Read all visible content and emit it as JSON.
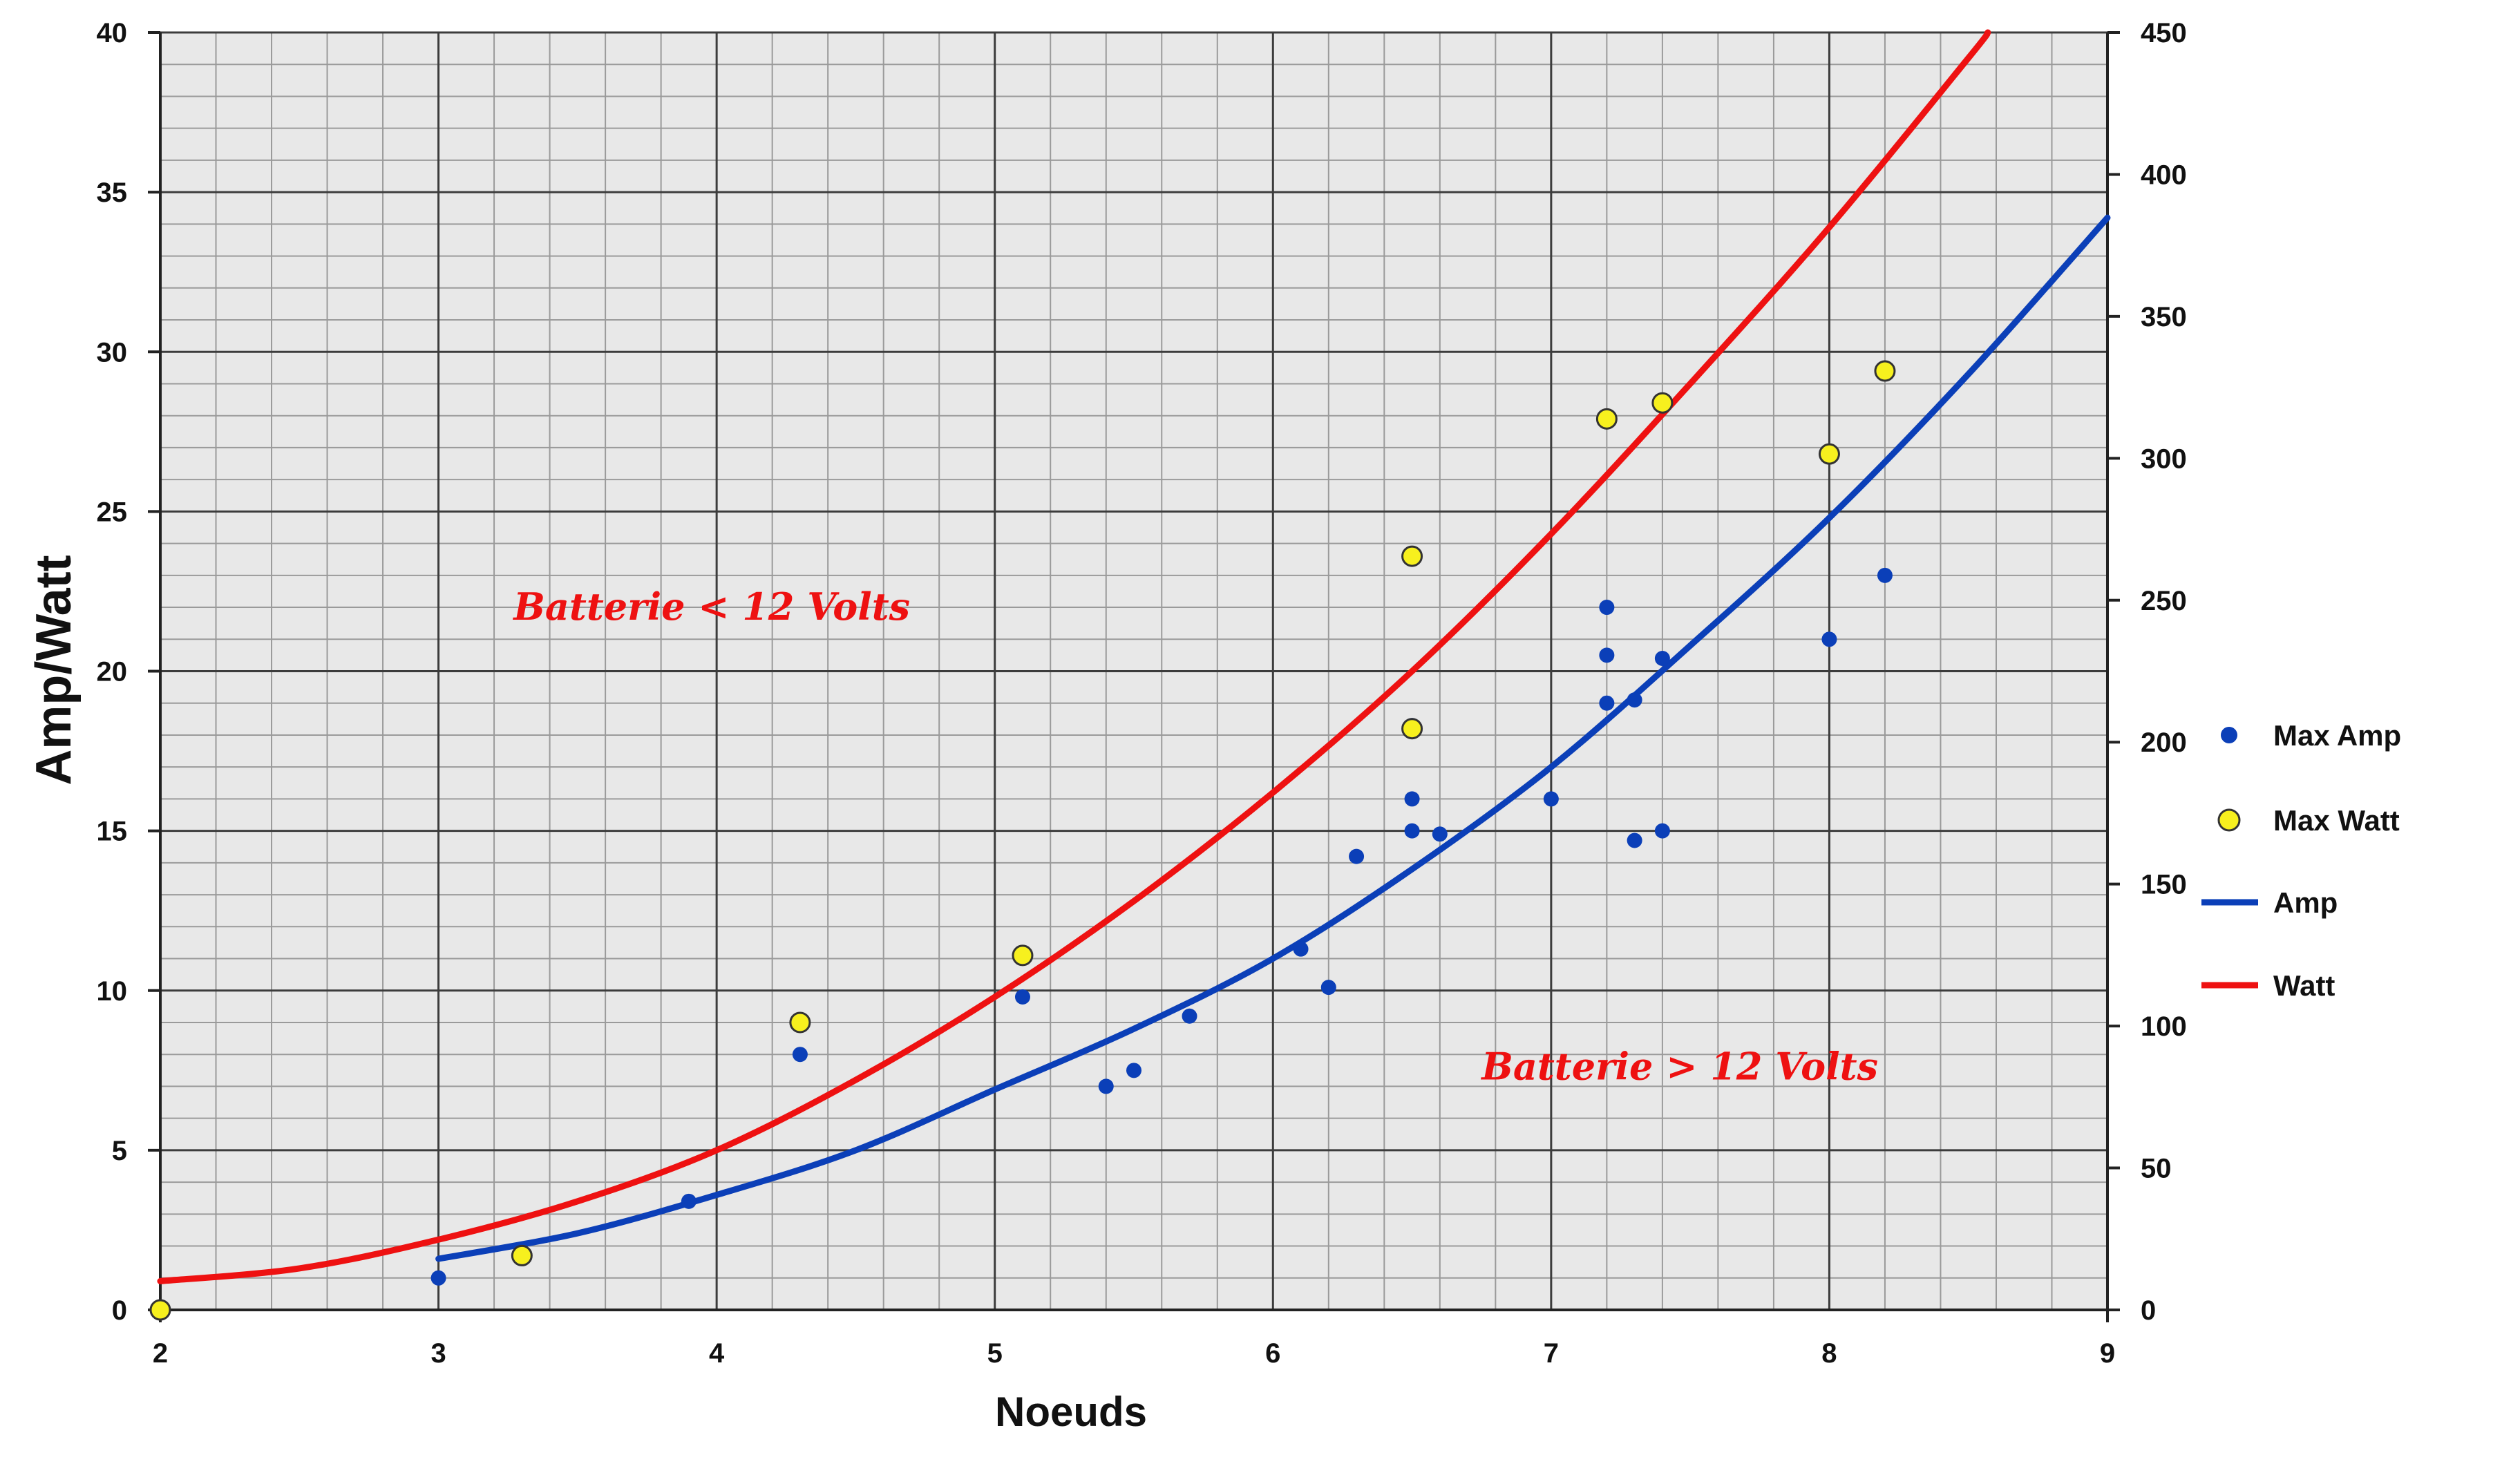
{
  "chart_data": {
    "type": "scatter",
    "xlabel": "Noeuds",
    "ylabel": "Amp/Watt",
    "xlim": [
      2,
      9
    ],
    "ylim": [
      0,
      40
    ],
    "y2lim": [
      0,
      450
    ],
    "x_ticks": [
      "2",
      "3",
      "4",
      "5",
      "6",
      "7",
      "8",
      "9"
    ],
    "y_ticks": [
      "0",
      "5",
      "10",
      "15",
      "20",
      "25",
      "30",
      "35",
      "40"
    ],
    "y2_ticks": [
      "0",
      "50",
      "100",
      "150",
      "200",
      "250",
      "300",
      "350",
      "400",
      "450"
    ],
    "grid": true,
    "background": "#e8e8e8",
    "legend_position": "right",
    "series": [
      {
        "name": "Max Amp",
        "kind": "scatter",
        "axis": "left",
        "color": "#0b3fb8",
        "points": [
          [
            3,
            1.0
          ],
          [
            3.9,
            3.4
          ],
          [
            4.3,
            8.0
          ],
          [
            5.1,
            9.8
          ],
          [
            5.4,
            7.0
          ],
          [
            5.5,
            7.5
          ],
          [
            5.7,
            9.2
          ],
          [
            6.1,
            11.3
          ],
          [
            6.2,
            10.1
          ],
          [
            6.3,
            14.2
          ],
          [
            6.5,
            16.0
          ],
          [
            6.5,
            15.0
          ],
          [
            6.5,
            18.3
          ],
          [
            6.6,
            14.9
          ],
          [
            7.0,
            16.0
          ],
          [
            7.2,
            22.0
          ],
          [
            7.2,
            20.5
          ],
          [
            7.2,
            19.0
          ],
          [
            7.3,
            19.1
          ],
          [
            7.3,
            14.7
          ],
          [
            7.4,
            20.4
          ],
          [
            7.4,
            15.0
          ],
          [
            8.0,
            21.0
          ],
          [
            8.2,
            23.0
          ]
        ]
      },
      {
        "name": "Max Watt",
        "kind": "scatter",
        "axis": "left",
        "color": "#f7f01e",
        "points": [
          [
            2,
            0
          ],
          [
            3.3,
            1.7
          ],
          [
            4.3,
            9.0
          ],
          [
            5.1,
            11.1
          ],
          [
            6.5,
            23.6
          ],
          [
            6.5,
            18.2
          ],
          [
            7.2,
            27.9
          ],
          [
            7.4,
            28.4
          ],
          [
            8.0,
            26.8
          ],
          [
            8.2,
            29.4
          ]
        ]
      },
      {
        "name": "Amp",
        "kind": "line",
        "axis": "left",
        "color": "#0b3fb8",
        "x": [
          3,
          3.5,
          4,
          4.5,
          5,
          5.5,
          6,
          6.5,
          7,
          7.5,
          8,
          8.5,
          9
        ],
        "values": [
          1.6,
          2.4,
          3.6,
          5.0,
          6.9,
          8.8,
          11.0,
          13.8,
          17.0,
          20.8,
          24.8,
          29.3,
          34.2
        ]
      },
      {
        "name": "Watt",
        "kind": "line",
        "axis": "left",
        "color": "#ee1111",
        "x": [
          2,
          2.5,
          3,
          3.5,
          4,
          4.5,
          5,
          5.5,
          6,
          6.5,
          7,
          7.5,
          8,
          8.5,
          8.57
        ],
        "values": [
          0.9,
          1.3,
          2.2,
          3.4,
          5.0,
          7.2,
          9.8,
          12.8,
          16.2,
          20.0,
          24.3,
          29.0,
          33.9,
          39.2,
          40.0
        ]
      }
    ],
    "annotations": [
      {
        "text": "Batterie < 12 Volts",
        "x": 3.27,
        "y": 22.0,
        "color": "#ee1111"
      },
      {
        "text": "Batterie > 12 Volts",
        "x": 6.75,
        "y": 7.6,
        "color": "#ee1111"
      }
    ]
  }
}
